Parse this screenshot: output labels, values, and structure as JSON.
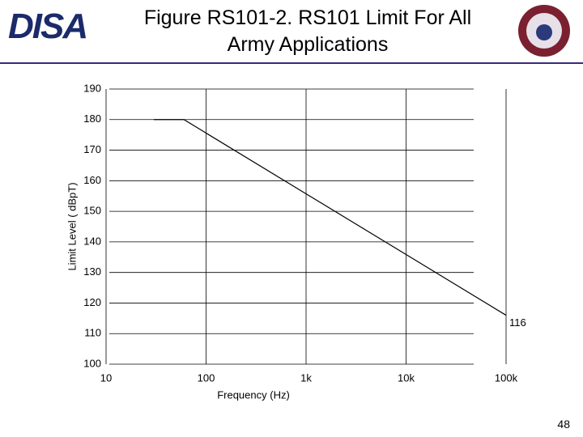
{
  "header": {
    "logo": "DISA",
    "title": "Figure RS101-2. RS101 Limit For All Army Applications"
  },
  "chart_data": {
    "type": "line",
    "x": [
      30,
      60,
      100000
    ],
    "values": [
      180,
      180,
      116
    ],
    "color": "#000000",
    "annotation": "116",
    "xlabel": "Frequency (Hz)",
    "ylabel": "Limit Level ( dBpT)",
    "xscale": "log",
    "grid": true,
    "xlim": [
      10,
      100000
    ],
    "xticks": [
      10,
      100,
      {
        "value": 1000,
        "label": "1k"
      },
      {
        "value": 10000,
        "label": "10k"
      },
      {
        "value": 100000,
        "label": "100k"
      }
    ],
    "ylim": [
      100,
      190
    ],
    "yticks": [
      100,
      110,
      120,
      130,
      140,
      150,
      160,
      170,
      180,
      190
    ]
  },
  "page_number": "48"
}
